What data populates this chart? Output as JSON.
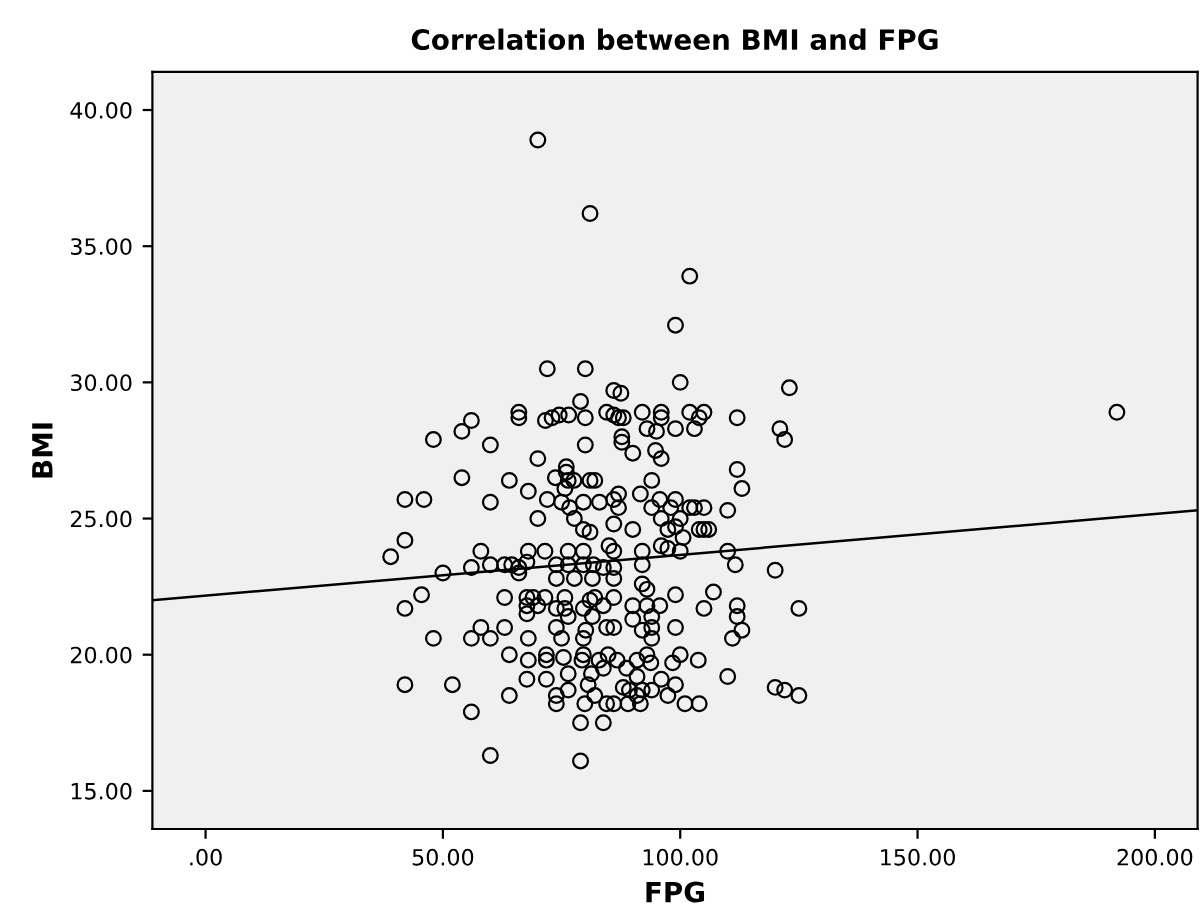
{
  "chart_data": {
    "type": "scatter",
    "title": "Correlation between BMI and FPG",
    "xlabel": "FPG",
    "ylabel": "BMI",
    "xlim": [
      -11.2,
      209
    ],
    "ylim": [
      13.6,
      41.4
    ],
    "xticks": [
      {
        "value": 0,
        "label": ".00"
      },
      {
        "value": 50,
        "label": "50.00"
      },
      {
        "value": 100,
        "label": "100.00"
      },
      {
        "value": 150,
        "label": "150.00"
      },
      {
        "value": 200,
        "label": "200.00"
      }
    ],
    "yticks": [
      {
        "value": 15,
        "label": "15.00"
      },
      {
        "value": 20,
        "label": "20.00"
      },
      {
        "value": 25,
        "label": "25.00"
      },
      {
        "value": 30,
        "label": "30.00"
      },
      {
        "value": 35,
        "label": "35.00"
      },
      {
        "value": 40,
        "label": "40.00"
      }
    ],
    "grid": false,
    "series": [
      {
        "marker": "circle",
        "color": "#000000",
        "x": [
          70,
          81,
          102,
          99,
          72,
          80,
          100,
          123,
          192,
          86,
          87.5,
          79,
          66,
          66,
          73,
          74.5,
          76.5,
          80,
          71.6,
          84.5,
          86,
          87,
          92,
          96,
          96,
          102,
          105,
          104,
          112,
          88,
          56,
          54,
          48,
          60,
          80,
          93,
          95,
          99,
          103,
          87.7,
          87.7,
          94.8,
          90,
          96,
          121,
          122,
          70,
          76,
          76,
          73.7,
          76.4,
          77.6,
          81,
          82,
          75.7,
          54,
          64,
          94,
          112,
          113,
          68,
          87,
          91.6,
          42,
          46,
          60,
          72,
          75,
          76.7,
          79.6,
          83,
          86,
          87,
          95.7,
          99,
          98,
          102,
          103,
          105,
          110,
          94,
          70,
          77.7,
          96,
          100,
          79.6,
          81,
          86,
          90,
          97.4,
          99,
          104,
          105,
          106,
          100.6,
          42,
          39,
          58,
          68,
          71.5,
          76.4,
          79.6,
          85,
          86,
          92,
          96,
          97.4,
          100,
          110,
          111.6,
          120,
          56,
          60,
          63,
          64.5,
          66,
          67.7,
          73.9,
          76.4,
          79.6,
          81.7,
          83.8,
          86,
          92,
          50,
          66,
          73.9,
          77.7,
          81.5,
          86,
          92,
          93,
          45.5,
          63,
          67.7,
          69,
          71.5,
          75.7,
          81,
          82,
          86,
          99,
          107,
          42,
          67.7,
          70,
          73.9,
          75.7,
          79.6,
          83.8,
          90,
          93,
          95.7,
          105,
          112,
          112,
          125,
          67.7,
          76.4,
          81.5,
          90,
          94,
          58,
          63,
          73.9,
          80.1,
          84.5,
          86,
          92,
          94,
          99,
          113,
          48,
          56,
          60,
          68,
          75,
          79.6,
          94,
          111,
          64,
          71.8,
          79.6,
          84.8,
          93,
          100,
          68,
          71.8,
          75.4,
          79.3,
          82.9,
          86.7,
          90.9,
          93.8,
          98.4,
          103.8,
          83.8,
          88.7,
          76.4,
          81.3,
          67.7,
          71.8,
          90.9,
          96,
          110,
          42,
          52,
          80.6,
          88,
          99,
          120,
          122,
          76.4,
          89.3,
          92,
          94,
          64,
          73.9,
          82,
          90.9,
          97.4,
          125,
          73.9,
          79.9,
          84.5,
          86,
          89,
          91.6,
          101,
          104,
          56,
          79,
          83.8,
          60,
          79
        ],
        "values": [
          38.9,
          36.2,
          33.9,
          32.1,
          30.5,
          30.5,
          30.0,
          29.8,
          28.9,
          29.7,
          29.6,
          29.3,
          28.9,
          28.7,
          28.7,
          28.8,
          28.8,
          28.7,
          28.6,
          28.9,
          28.8,
          28.7,
          28.9,
          28.9,
          28.7,
          28.9,
          28.9,
          28.7,
          28.7,
          28.7,
          28.6,
          28.2,
          27.9,
          27.7,
          27.7,
          28.3,
          28.2,
          28.3,
          28.3,
          28.0,
          27.8,
          27.5,
          27.4,
          27.2,
          28.3,
          27.9,
          27.2,
          26.9,
          26.7,
          26.5,
          26.4,
          26.4,
          26.4,
          26.4,
          26.1,
          26.5,
          26.4,
          26.4,
          26.8,
          26.1,
          26.0,
          25.9,
          25.9,
          25.7,
          25.7,
          25.6,
          25.7,
          25.6,
          25.4,
          25.6,
          25.6,
          25.7,
          25.4,
          25.7,
          25.7,
          25.4,
          25.4,
          25.4,
          25.4,
          25.3,
          25.4,
          25.0,
          25.0,
          25.0,
          25.0,
          24.6,
          24.5,
          24.8,
          24.6,
          24.6,
          24.7,
          24.6,
          24.6,
          24.6,
          24.3,
          24.2,
          23.6,
          23.8,
          23.8,
          23.8,
          23.8,
          23.8,
          24.0,
          23.8,
          23.8,
          24.0,
          23.9,
          23.8,
          23.8,
          23.3,
          23.1,
          23.2,
          23.3,
          23.3,
          23.3,
          23.2,
          23.4,
          23.3,
          23.3,
          23.3,
          23.3,
          23.2,
          23.2,
          23.3,
          23.0,
          23.0,
          22.8,
          22.8,
          22.8,
          22.8,
          22.6,
          22.4,
          22.2,
          22.1,
          22.1,
          22.1,
          22.1,
          22.1,
          22.0,
          22.1,
          22.1,
          22.2,
          22.3,
          21.7,
          21.8,
          21.8,
          21.7,
          21.7,
          21.7,
          21.8,
          21.8,
          21.8,
          21.8,
          21.7,
          21.8,
          21.4,
          21.7,
          21.5,
          21.4,
          21.4,
          21.3,
          21.4,
          21.0,
          21.0,
          21.0,
          20.9,
          21.0,
          21.0,
          20.9,
          21.0,
          21.0,
          20.9,
          20.6,
          20.6,
          20.6,
          20.6,
          20.6,
          20.6,
          20.6,
          20.6,
          20.0,
          20.0,
          20.0,
          20.0,
          20.0,
          20.0,
          19.8,
          19.8,
          19.9,
          19.8,
          19.8,
          19.8,
          19.8,
          19.7,
          19.7,
          19.8,
          19.5,
          19.5,
          19.3,
          19.3,
          19.1,
          19.1,
          19.2,
          19.1,
          19.2,
          18.9,
          18.9,
          18.9,
          18.8,
          18.9,
          18.8,
          18.7,
          18.7,
          18.7,
          18.7,
          18.7,
          18.5,
          18.5,
          18.5,
          18.5,
          18.5,
          18.5,
          18.2,
          18.2,
          18.2,
          18.2,
          18.2,
          18.2,
          18.2,
          18.2,
          17.9,
          17.5,
          17.5,
          16.3,
          16.1
        ]
      },
      {
        "type": "line",
        "marker": "none",
        "color": "#000000",
        "x": [
          -11.2,
          209
        ],
        "values": [
          22.0,
          25.3
        ]
      }
    ]
  }
}
